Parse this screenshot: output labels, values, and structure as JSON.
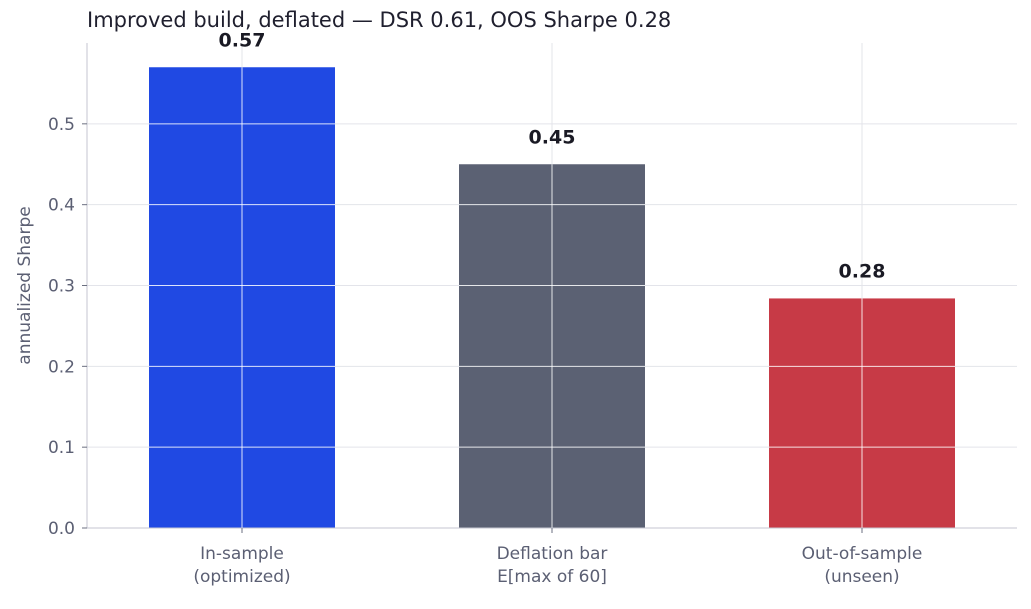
{
  "chart_data": {
    "type": "bar",
    "title": "Improved build, deflated — DSR 0.61, OOS Sharpe 0.28",
    "xlabel": "",
    "ylabel": "annualized Sharpe",
    "ylim": [
      0,
      0.6
    ],
    "yticks": [
      "0.0",
      "0.1",
      "0.2",
      "0.3",
      "0.4",
      "0.5"
    ],
    "categories": [
      [
        "In-sample",
        "(optimized)"
      ],
      [
        "Deflation bar",
        "E[max of 60]"
      ],
      [
        "Out-of-sample",
        "(unseen)"
      ]
    ],
    "values": [
      0.57,
      0.45,
      0.284
    ],
    "value_labels": [
      "0.57",
      "0.45",
      "0.28"
    ],
    "colors": [
      "#2049e3",
      "#5b6173",
      "#c73a46"
    ],
    "grid": true,
    "legend": "none"
  }
}
